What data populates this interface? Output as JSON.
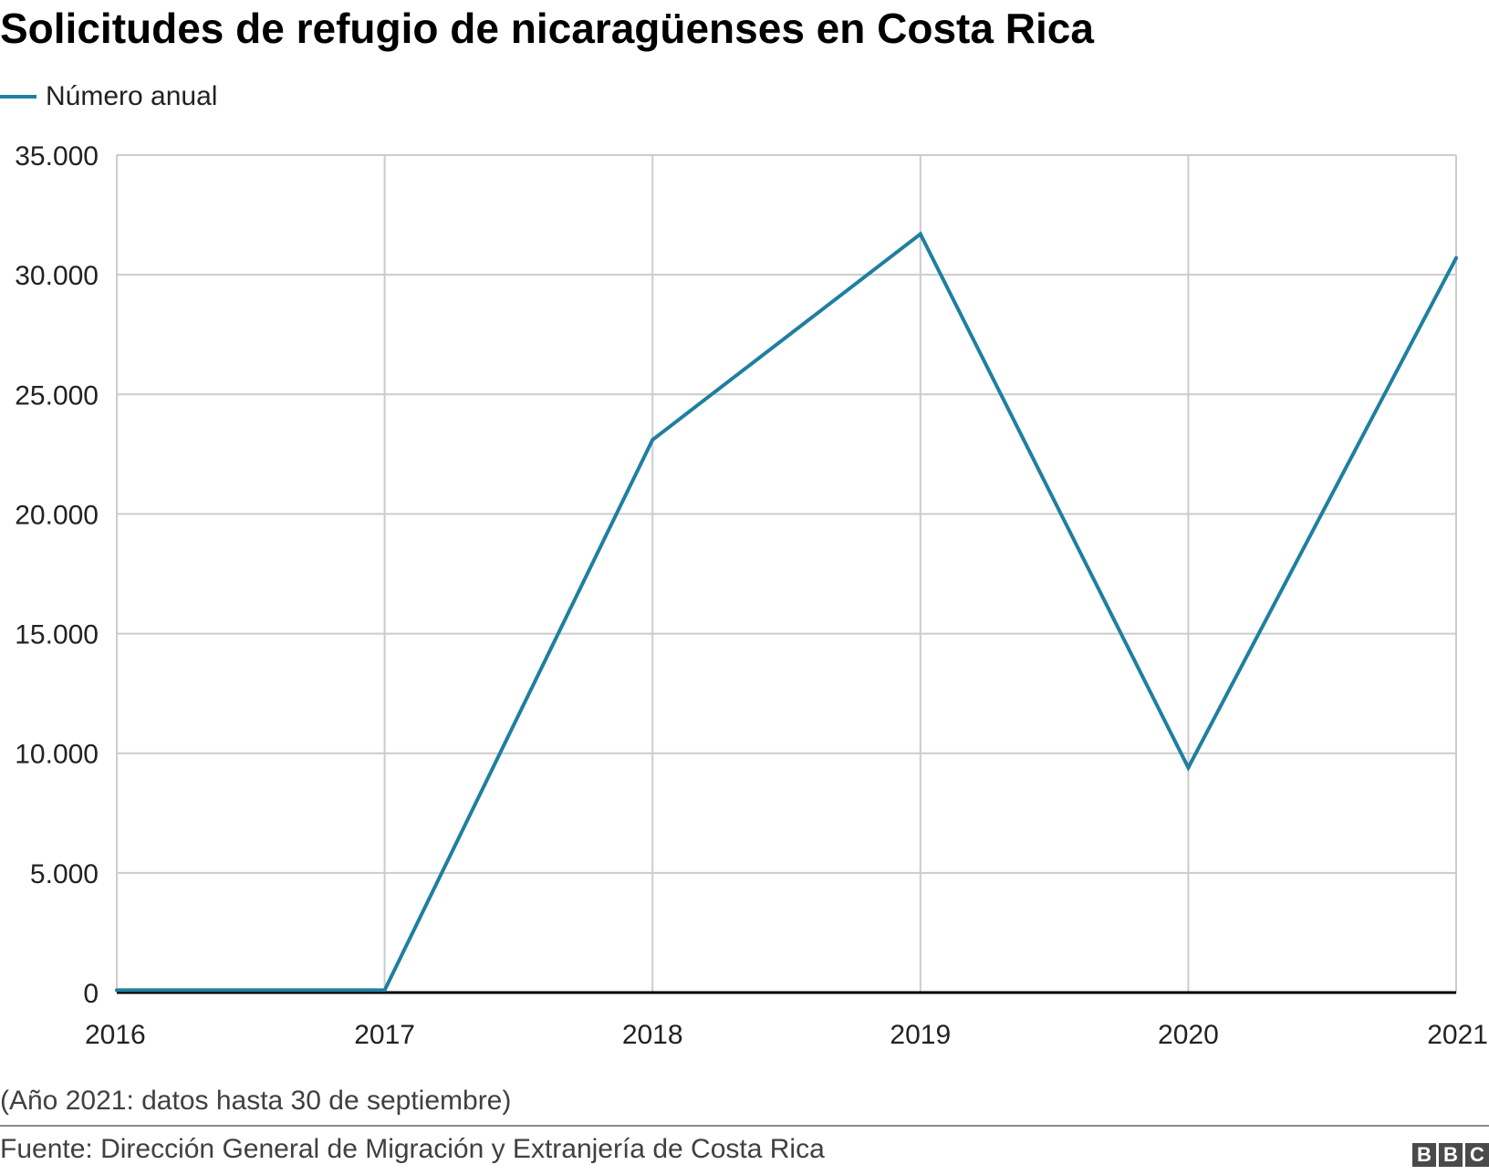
{
  "title": "Solicitudes de refugio de nicaragüenses en Costa Rica",
  "legend": {
    "label": "Número anual",
    "color": "#1f7fa0"
  },
  "note": "(Año 2021: datos hasta 30 de septiembre)",
  "source": "Fuente: Dirección General de Migración y Extranjería de Costa Rica",
  "logo": {
    "letters": [
      "B",
      "B",
      "C"
    ]
  },
  "colors": {
    "line": "#1f7fa0",
    "grid": "#cccccc",
    "axis": "#000000",
    "text": "#222222"
  },
  "chart_data": {
    "type": "line",
    "x": [
      2016,
      2017,
      2018,
      2019,
      2020,
      2021
    ],
    "x_tick_labels": [
      "2016",
      "2017",
      "2018",
      "2019",
      "2020",
      "2021"
    ],
    "y_ticks": [
      0,
      5000,
      10000,
      15000,
      20000,
      25000,
      30000,
      35000
    ],
    "y_tick_labels": [
      "0",
      "5.000",
      "10.000",
      "15.000",
      "20.000",
      "25.000",
      "30.000",
      "35.000"
    ],
    "ylim": [
      0,
      35000
    ],
    "xlim": [
      2016,
      2021
    ],
    "grid": true,
    "legend_position": "top-left",
    "series": [
      {
        "name": "Número anual",
        "values": [
          100,
          100,
          23100,
          31700,
          9400,
          30700
        ]
      }
    ]
  }
}
